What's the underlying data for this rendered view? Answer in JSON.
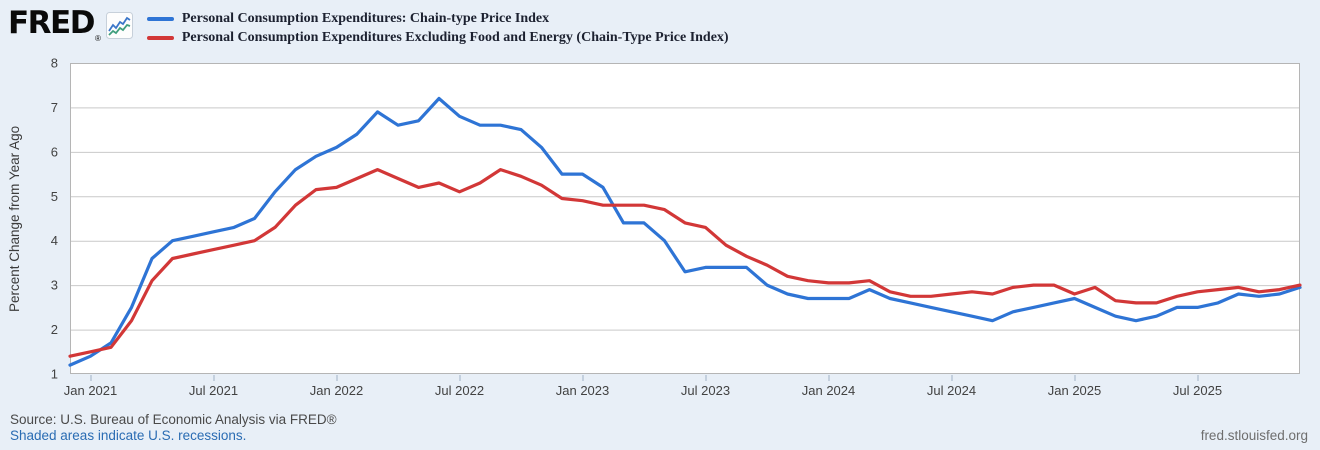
{
  "header": {
    "logo_text": "FRED",
    "logo_reg_mark": "®",
    "logo_icon": "fred-sparkline-icon"
  },
  "legend": [
    {
      "label": "Personal Consumption Expenditures: Chain-type Price Index",
      "color": "#2e74d5"
    },
    {
      "label": "Personal Consumption Expenditures Excluding Food and Energy (Chain-Type Price Index)",
      "color": "#d23737"
    }
  ],
  "y_axis": {
    "title": "Percent Change from Year Ago",
    "ticks": [
      8,
      7,
      6,
      5,
      4,
      3,
      2,
      1
    ]
  },
  "x_axis": {
    "ticks": [
      {
        "label": "Jan 2021",
        "index": 1
      },
      {
        "label": "Jul 2021",
        "index": 7
      },
      {
        "label": "Jan 2022",
        "index": 13
      },
      {
        "label": "Jul 2022",
        "index": 19
      },
      {
        "label": "Jan 2023",
        "index": 25
      },
      {
        "label": "Jul 2023",
        "index": 31
      },
      {
        "label": "Jan 2024",
        "index": 37
      },
      {
        "label": "Jul 2024",
        "index": 43
      },
      {
        "label": "Jan 2025",
        "index": 49
      },
      {
        "label": "Jul 2025",
        "index": 55
      }
    ]
  },
  "footer": {
    "source": "Source: U.S. Bureau of Economic Analysis via FRED®",
    "recessions_note": "Shaded areas indicate U.S. recessions.",
    "site": "fred.stlouisfed.org"
  },
  "colors": {
    "page_background": "#e8eff7",
    "plot_background": "#ffffff",
    "gridline": "#c9c9c9",
    "plot_border": "#b5b5b5",
    "tick_mark": "#b9c6d5",
    "axis_text": "#424242"
  },
  "chart_data": {
    "type": "line",
    "title": "Personal Consumption Expenditures price indexes, percent change from year ago",
    "ylabel": "Percent Change from Year Ago",
    "xlabel": "",
    "ylim": [
      1,
      8
    ],
    "grid": "horizontal-only",
    "legend_position": "top-left",
    "x": [
      "2020-12",
      "2021-01",
      "2021-02",
      "2021-03",
      "2021-04",
      "2021-05",
      "2021-06",
      "2021-07",
      "2021-08",
      "2021-09",
      "2021-10",
      "2021-11",
      "2021-12",
      "2022-01",
      "2022-02",
      "2022-03",
      "2022-04",
      "2022-05",
      "2022-06",
      "2022-07",
      "2022-08",
      "2022-09",
      "2022-10",
      "2022-11",
      "2022-12",
      "2023-01",
      "2023-02",
      "2023-03",
      "2023-04",
      "2023-05",
      "2023-06",
      "2023-07",
      "2023-08",
      "2023-09",
      "2023-10",
      "2023-11",
      "2023-12",
      "2024-01",
      "2024-02",
      "2024-03",
      "2024-04",
      "2024-05",
      "2024-06",
      "2024-07",
      "2024-08",
      "2024-09",
      "2024-10",
      "2024-11",
      "2024-12",
      "2025-01",
      "2025-02",
      "2025-03",
      "2025-04",
      "2025-05",
      "2025-06",
      "2025-07",
      "2025-08",
      "2025-09",
      "2025-10",
      "2025-11",
      "2025-12"
    ],
    "series": [
      {
        "name": "Personal Consumption Expenditures: Chain-type Price Index",
        "color": "#2e74d5",
        "values": [
          1.2,
          1.4,
          1.7,
          2.5,
          3.6,
          4.0,
          4.1,
          4.2,
          4.3,
          4.5,
          5.1,
          5.6,
          5.9,
          6.1,
          6.4,
          6.9,
          6.6,
          6.7,
          7.2,
          6.8,
          6.6,
          6.6,
          6.5,
          6.1,
          5.5,
          5.5,
          5.2,
          4.4,
          4.4,
          4.0,
          3.3,
          3.4,
          3.4,
          3.4,
          3.0,
          2.8,
          2.7,
          2.7,
          2.7,
          2.9,
          2.7,
          2.6,
          2.5,
          2.4,
          2.3,
          2.2,
          2.4,
          2.5,
          2.6,
          2.7,
          2.5,
          2.3,
          2.2,
          2.3,
          2.5,
          2.5,
          2.6,
          2.8,
          2.75,
          2.8,
          2.95
        ]
      },
      {
        "name": "Personal Consumption Expenditures Excluding Food and Energy (Chain-Type Price Index)",
        "color": "#d23737",
        "values": [
          1.4,
          1.5,
          1.6,
          2.2,
          3.1,
          3.6,
          3.7,
          3.8,
          3.9,
          4.0,
          4.3,
          4.8,
          5.15,
          5.2,
          5.4,
          5.6,
          5.4,
          5.2,
          5.3,
          5.1,
          5.3,
          5.6,
          5.45,
          5.25,
          4.95,
          4.9,
          4.8,
          4.8,
          4.8,
          4.7,
          4.4,
          4.3,
          3.9,
          3.65,
          3.45,
          3.2,
          3.1,
          3.05,
          3.05,
          3.1,
          2.85,
          2.75,
          2.75,
          2.8,
          2.85,
          2.8,
          2.95,
          3.0,
          3.0,
          2.8,
          2.95,
          2.65,
          2.6,
          2.6,
          2.75,
          2.85,
          2.9,
          2.95,
          2.85,
          2.9,
          3.0
        ]
      }
    ]
  }
}
